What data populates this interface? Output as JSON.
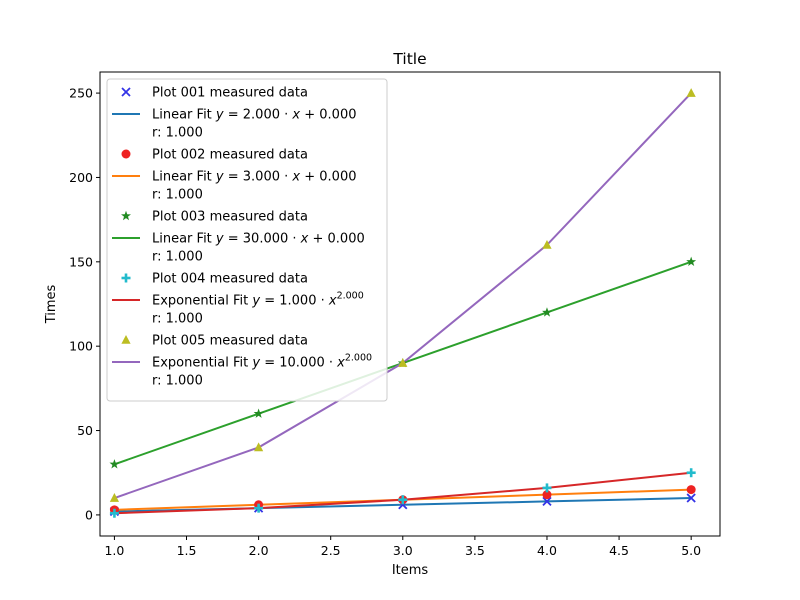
{
  "chart_data": {
    "type": "line",
    "title": "Title",
    "xlabel": "Items",
    "ylabel": "Times",
    "xlim": [
      0.9,
      5.2
    ],
    "ylim": [
      -12.5,
      262.5
    ],
    "xticks": [
      1.0,
      1.5,
      2.0,
      2.5,
      3.0,
      3.5,
      4.0,
      4.5,
      5.0
    ],
    "xtick_labels": [
      "1.0",
      "1.5",
      "2.0",
      "2.5",
      "3.0",
      "3.5",
      "4.0",
      "4.5",
      "5.0"
    ],
    "yticks": [
      0,
      50,
      100,
      150,
      200,
      250
    ],
    "ytick_labels": [
      "0",
      "50",
      "100",
      "150",
      "200",
      "250"
    ],
    "grid": false,
    "legend_position": "top-left",
    "x": [
      1,
      2,
      3,
      4,
      5
    ],
    "series": [
      {
        "name": "Plot 001 measured data",
        "values": [
          2,
          4,
          6,
          8,
          10
        ],
        "marker": "x",
        "color": "#3333e6",
        "fit": {
          "label_parts": [
            "Linear Fit ",
            "y",
            " = 2.000 · ",
            "x",
            " + 0.000"
          ],
          "r_label": "r: 1.000",
          "values": [
            2,
            4,
            6,
            8,
            10
          ],
          "color": "#1f77b4"
        }
      },
      {
        "name": "Plot 002 measured data",
        "values": [
          3,
          6,
          9,
          12,
          15
        ],
        "marker": "circle",
        "color": "#ee2222",
        "fit": {
          "label_parts": [
            "Linear Fit ",
            "y",
            " = 3.000 · ",
            "x",
            " + 0.000"
          ],
          "r_label": "r: 1.000",
          "values": [
            3,
            6,
            9,
            12,
            15
          ],
          "color": "#ff7f0e"
        }
      },
      {
        "name": "Plot 003 measured data",
        "values": [
          30,
          60,
          90,
          120,
          150
        ],
        "marker": "star",
        "color": "#228b22",
        "fit": {
          "label_parts": [
            "Linear Fit ",
            "y",
            " = 30.000 · ",
            "x",
            " + 0.000"
          ],
          "r_label": "r: 1.000",
          "values": [
            30,
            60,
            90,
            120,
            150
          ],
          "color": "#2ca02c"
        }
      },
      {
        "name": "Plot 004 measured data",
        "values": [
          1,
          4,
          9,
          16,
          25
        ],
        "marker": "plus",
        "color": "#22bbcc",
        "fit": {
          "label_parts": [
            "Exponential Fit ",
            "y",
            " = 1.000 · ",
            "x",
            ""
          ],
          "exponent": "2.000",
          "r_label": "r: 1.000",
          "values": [
            1,
            4,
            9,
            16,
            25
          ],
          "color": "#d62728"
        }
      },
      {
        "name": "Plot 005 measured data",
        "values": [
          10,
          40,
          90,
          160,
          250
        ],
        "marker": "triangle",
        "color": "#bcbd22",
        "fit": {
          "label_parts": [
            "Exponential Fit ",
            "y",
            " = 10.000 · ",
            "x",
            ""
          ],
          "exponent": "2.000",
          "r_label": "r: 1.000",
          "values": [
            10,
            40,
            90,
            160,
            250
          ],
          "color": "#9467bd"
        }
      }
    ]
  }
}
